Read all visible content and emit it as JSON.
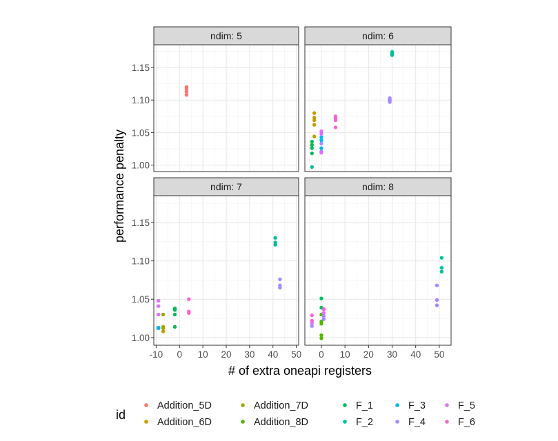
{
  "chart_data": {
    "type": "scatter",
    "xlabel": "# of extra oneapi registers",
    "ylabel": "performance penalty",
    "legend_title": "id",
    "legend_position": "bottom",
    "grid": true,
    "ylim": [
      0.99,
      1.185
    ],
    "yticks": [
      1.0,
      1.05,
      1.1,
      1.15
    ],
    "ytick_labels": [
      "1.00",
      "1.05",
      "1.10",
      "1.15"
    ],
    "xticks": [
      -10,
      0,
      10,
      20,
      30,
      40,
      50
    ],
    "xtick_labels": [
      "-10",
      "0",
      "10",
      "20",
      "30",
      "40",
      "50"
    ],
    "facet_label_prefix": "ndim: ",
    "series": [
      {
        "name": "Addition_5D",
        "color": "#F8766D"
      },
      {
        "name": "Addition_6D",
        "color": "#C49A00"
      },
      {
        "name": "Addition_7D",
        "color": "#99A800"
      },
      {
        "name": "Addition_8D",
        "color": "#53B400"
      },
      {
        "name": "F_1",
        "color": "#00BC56"
      },
      {
        "name": "F_2",
        "color": "#00C094"
      },
      {
        "name": "F_3",
        "color": "#00B6EB"
      },
      {
        "name": "F_4",
        "color": "#A58AFF"
      },
      {
        "name": "F_5",
        "color": "#DF70F8"
      },
      {
        "name": "F_6",
        "color": "#FB61D7"
      }
    ],
    "panels": [
      {
        "label": "5",
        "xlim": [
          -11,
          51
        ],
        "points": [
          {
            "id": "Addition_5D",
            "x": 3,
            "y": 1.12
          },
          {
            "id": "Addition_5D",
            "x": 3,
            "y": 1.117
          },
          {
            "id": "Addition_5D",
            "x": 3,
            "y": 1.113
          },
          {
            "id": "Addition_5D",
            "x": 3,
            "y": 1.108
          }
        ]
      },
      {
        "label": "6",
        "xlim": [
          -7,
          55
        ],
        "points": [
          {
            "id": "Addition_6D",
            "x": -3,
            "y": 1.08
          },
          {
            "id": "Addition_6D",
            "x": -3,
            "y": 1.073
          },
          {
            "id": "Addition_6D",
            "x": -3,
            "y": 1.069
          },
          {
            "id": "Addition_6D",
            "x": -3,
            "y": 1.062
          },
          {
            "id": "Addition_6D",
            "x": -3,
            "y": 1.044
          },
          {
            "id": "F_1",
            "x": -4,
            "y": 1.036
          },
          {
            "id": "F_1",
            "x": -4,
            "y": 1.031
          },
          {
            "id": "F_1",
            "x": -4,
            "y": 1.026
          },
          {
            "id": "F_1",
            "x": -4,
            "y": 1.018
          },
          {
            "id": "F_2",
            "x": -4,
            "y": 0.997
          },
          {
            "id": "F_3",
            "x": 0,
            "y": 1.043
          },
          {
            "id": "F_3",
            "x": 0,
            "y": 1.038
          },
          {
            "id": "F_3",
            "x": 0,
            "y": 1.026
          },
          {
            "id": "F_4",
            "x": 0,
            "y": 1.033
          },
          {
            "id": "F_4",
            "x": 0,
            "y": 1.021
          },
          {
            "id": "F_5",
            "x": 0,
            "y": 1.052
          },
          {
            "id": "F_5",
            "x": 0,
            "y": 1.048
          },
          {
            "id": "F_5",
            "x": 0,
            "y": 1.019
          },
          {
            "id": "F_6",
            "x": 6,
            "y": 1.075
          },
          {
            "id": "F_6",
            "x": 6,
            "y": 1.072
          },
          {
            "id": "F_6",
            "x": 6,
            "y": 1.069
          },
          {
            "id": "F_6",
            "x": 6,
            "y": 1.058
          },
          {
            "id": "F_4",
            "x": 29,
            "y": 1.103
          },
          {
            "id": "F_4",
            "x": 29,
            "y": 1.101
          },
          {
            "id": "F_4",
            "x": 29,
            "y": 1.099
          },
          {
            "id": "F_4",
            "x": 29,
            "y": 1.097
          },
          {
            "id": "F_2",
            "x": 30,
            "y": 1.174
          },
          {
            "id": "F_2",
            "x": 30,
            "y": 1.172
          },
          {
            "id": "F_2",
            "x": 30,
            "y": 1.169
          }
        ]
      },
      {
        "label": "7",
        "xlim": [
          -11,
          51
        ],
        "points": [
          {
            "id": "F_5",
            "x": -9,
            "y": 1.048
          },
          {
            "id": "F_5",
            "x": -9,
            "y": 1.041
          },
          {
            "id": "F_5",
            "x": -9,
            "y": 1.03
          },
          {
            "id": "F_3",
            "x": -9,
            "y": 1.013
          },
          {
            "id": "F_3",
            "x": -9,
            "y": 1.012
          },
          {
            "id": "Addition_7D",
            "x": -7,
            "y": 1.03
          },
          {
            "id": "Addition_7D",
            "x": -7,
            "y": 1.014
          },
          {
            "id": "Addition_7D",
            "x": -7,
            "y": 1.012
          },
          {
            "id": "Addition_6D",
            "x": -7,
            "y": 1.008
          },
          {
            "id": "F_1",
            "x": -2,
            "y": 1.038
          },
          {
            "id": "F_1",
            "x": -2,
            "y": 1.036
          },
          {
            "id": "F_1",
            "x": -2,
            "y": 1.03
          },
          {
            "id": "F_1",
            "x": -2,
            "y": 1.014
          },
          {
            "id": "F_6",
            "x": 4,
            "y": 1.05
          },
          {
            "id": "F_6",
            "x": 4,
            "y": 1.034
          },
          {
            "id": "F_6",
            "x": 4,
            "y": 1.032
          },
          {
            "id": "F_2",
            "x": 41,
            "y": 1.13
          },
          {
            "id": "F_2",
            "x": 41,
            "y": 1.124
          },
          {
            "id": "F_2",
            "x": 41,
            "y": 1.121
          },
          {
            "id": "F_4",
            "x": 43,
            "y": 1.076
          },
          {
            "id": "F_4",
            "x": 43,
            "y": 1.068
          },
          {
            "id": "F_4",
            "x": 43,
            "y": 1.065
          }
        ]
      },
      {
        "label": "8",
        "xlim": [
          -7,
          55
        ],
        "points": [
          {
            "id": "F_6",
            "x": -4,
            "y": 1.029
          },
          {
            "id": "F_6",
            "x": -4,
            "y": 1.022
          },
          {
            "id": "F_5",
            "x": -4,
            "y": 1.019
          },
          {
            "id": "F_4",
            "x": -4,
            "y": 1.015
          },
          {
            "id": "F_1",
            "x": 0,
            "y": 1.051
          },
          {
            "id": "F_1",
            "x": 0,
            "y": 1.039
          },
          {
            "id": "Addition_8D",
            "x": 0,
            "y": 1.03
          },
          {
            "id": "Addition_8D",
            "x": 0,
            "y": 1.021
          },
          {
            "id": "Addition_8D",
            "x": 0,
            "y": 1.018
          },
          {
            "id": "Addition_8D",
            "x": 0,
            "y": 1.003
          },
          {
            "id": "Addition_8D",
            "x": 0,
            "y": 0.999
          },
          {
            "id": "F_4",
            "x": 1,
            "y": 1.028
          },
          {
            "id": "F_4",
            "x": 1,
            "y": 1.024
          },
          {
            "id": "F_5",
            "x": 1,
            "y": 1.037
          },
          {
            "id": "F_5",
            "x": 1,
            "y": 1.032
          },
          {
            "id": "F_6",
            "x": 1,
            "y": 1.037
          },
          {
            "id": "F_4",
            "x": 49,
            "y": 1.068
          },
          {
            "id": "F_4",
            "x": 49,
            "y": 1.049
          },
          {
            "id": "F_4",
            "x": 49,
            "y": 1.042
          },
          {
            "id": "F_2",
            "x": 51,
            "y": 1.104
          },
          {
            "id": "F_2",
            "x": 51,
            "y": 1.091
          },
          {
            "id": "F_2",
            "x": 51,
            "y": 1.086
          }
        ]
      }
    ]
  }
}
